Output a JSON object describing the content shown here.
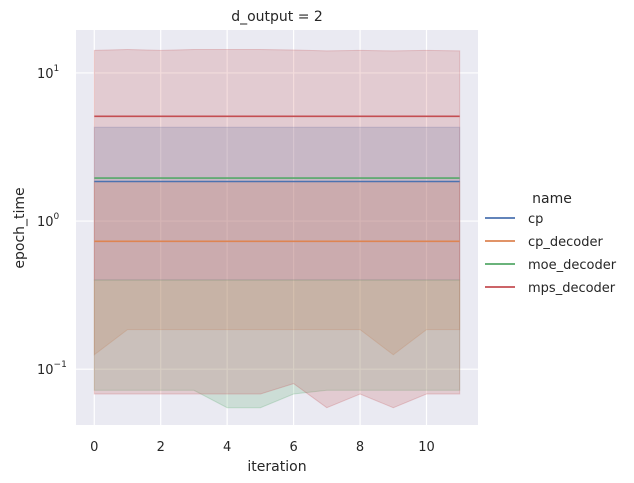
{
  "chart_data": {
    "type": "line",
    "title": "d_output = 2",
    "xlabel": "iteration",
    "ylabel": "epoch_time",
    "yscale": "log",
    "xlim": [
      -0.55,
      11.55
    ],
    "ylim": [
      0.042,
      19.5
    ],
    "x_ticks": [
      0,
      2,
      4,
      6,
      8,
      10
    ],
    "y_ticks": [
      {
        "value": 0.1,
        "base": "10",
        "exp": "−1"
      },
      {
        "value": 1,
        "base": "10",
        "exp": "0"
      },
      {
        "value": 10,
        "base": "10",
        "exp": "1"
      }
    ],
    "grid": true,
    "legend_title": "name",
    "legend_placement": "right",
    "x": [
      0,
      1,
      2,
      3,
      4,
      5,
      6,
      7,
      8,
      9,
      10,
      11
    ],
    "series": [
      {
        "name": "cp",
        "color": "#4c72b0",
        "values": [
          1.85,
          1.85,
          1.85,
          1.85,
          1.85,
          1.85,
          1.85,
          1.85,
          1.85,
          1.85,
          1.85,
          1.85
        ],
        "lower": [
          0.4,
          0.4,
          0.4,
          0.4,
          0.4,
          0.4,
          0.4,
          0.4,
          0.4,
          0.4,
          0.4,
          0.4
        ],
        "upper": [
          4.3,
          4.3,
          4.3,
          4.3,
          4.3,
          4.3,
          4.3,
          4.3,
          4.3,
          4.3,
          4.3,
          4.3
        ]
      },
      {
        "name": "cp_decoder",
        "color": "#dd8452",
        "values": [
          0.73,
          0.73,
          0.73,
          0.73,
          0.73,
          0.73,
          0.73,
          0.73,
          0.73,
          0.73,
          0.73,
          0.73
        ],
        "lower": [
          0.125,
          0.185,
          0.185,
          0.185,
          0.185,
          0.185,
          0.185,
          0.185,
          0.185,
          0.125,
          0.185,
          0.185
        ],
        "upper": [
          1.85,
          1.85,
          1.85,
          1.85,
          1.85,
          1.85,
          1.85,
          1.85,
          1.85,
          1.85,
          1.85,
          1.85
        ]
      },
      {
        "name": "moe_decoder",
        "color": "#55a868",
        "values": [
          1.95,
          1.95,
          1.95,
          1.95,
          1.95,
          1.95,
          1.95,
          1.95,
          1.95,
          1.95,
          1.95,
          1.95
        ],
        "lower": [
          0.072,
          0.072,
          0.072,
          0.072,
          0.055,
          0.055,
          0.068,
          0.072,
          0.072,
          0.072,
          0.072,
          0.072
        ],
        "upper": [
          0.4,
          0.4,
          0.4,
          0.4,
          0.4,
          0.4,
          0.4,
          0.4,
          0.4,
          0.4,
          0.4,
          0.4
        ]
      },
      {
        "name": "mps_decoder",
        "color": "#c44e52",
        "values": [
          5.1,
          5.1,
          5.1,
          5.1,
          5.1,
          5.1,
          5.1,
          5.1,
          5.1,
          5.1,
          5.1,
          5.1
        ],
        "lower": [
          0.068,
          0.068,
          0.068,
          0.068,
          0.068,
          0.068,
          0.08,
          0.055,
          0.068,
          0.055,
          0.068,
          0.068
        ],
        "upper": [
          14.2,
          14.4,
          14.2,
          14.4,
          14.4,
          14.4,
          14.3,
          14.1,
          14.2,
          14.1,
          14.2,
          14.1
        ]
      }
    ]
  }
}
